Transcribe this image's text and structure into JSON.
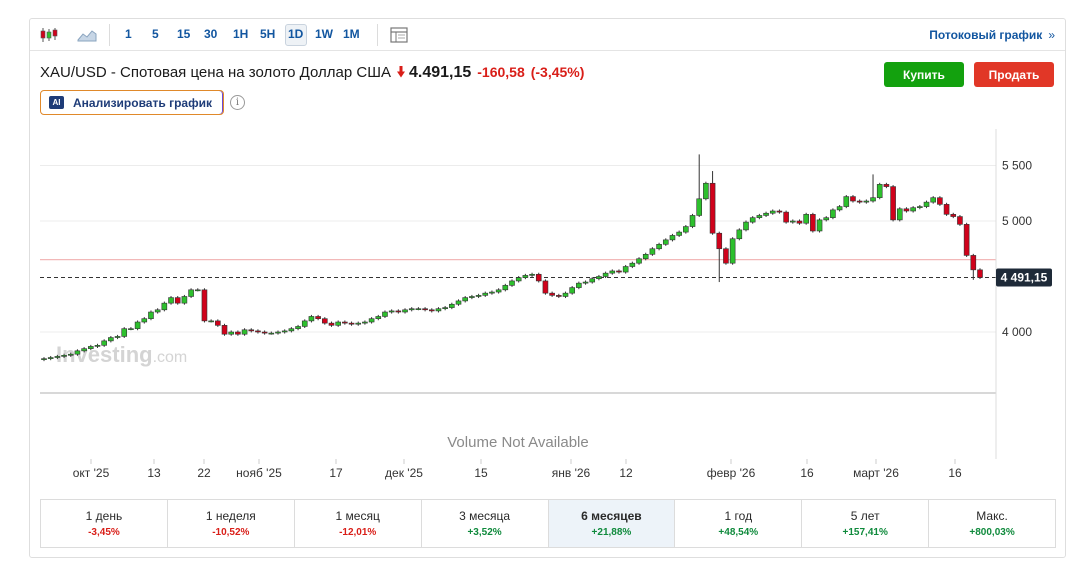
{
  "toolbar": {
    "intervals": [
      "1",
      "5",
      "15",
      "30",
      "1H",
      "5H",
      "1D",
      "1W",
      "1M"
    ],
    "active_interval": "1D",
    "stream_label": "Потоковый график",
    "stream_chevron": "»",
    "icons": [
      "candlestick-icon",
      "area-chart-icon",
      "layout-icon"
    ]
  },
  "header": {
    "title": "XAU/USD - Спотовая цена на золото Доллар США",
    "price": "4.491,15",
    "change": "-160,58",
    "change_pct": "(-3,45%)",
    "direction": "down"
  },
  "actions": {
    "buy": "Купить",
    "sell": "Продать"
  },
  "analyze": {
    "badge": "AI",
    "label": "Анализировать график",
    "info": "i"
  },
  "chart": {
    "price_label": "4 491,15",
    "volume_text": "Volume Not Available",
    "watermark": "Investing",
    "watermark_suffix": ".com",
    "colors": {
      "up": "#2dc02d",
      "down": "#d0021b",
      "grid": "#ececec",
      "ref_line": "#f2b8b8"
    }
  },
  "periods": [
    {
      "label": "1 день",
      "value": "-3,45%",
      "sign": "neg"
    },
    {
      "label": "1 неделя",
      "value": "-10,52%",
      "sign": "neg"
    },
    {
      "label": "1 месяц",
      "value": "-12,01%",
      "sign": "neg"
    },
    {
      "label": "3 месяца",
      "value": "+3,52%",
      "sign": "pos"
    },
    {
      "label": "6 месяцев",
      "value": "+21,88%",
      "sign": "pos",
      "active": true
    },
    {
      "label": "1 год",
      "value": "+48,54%",
      "sign": "pos"
    },
    {
      "label": "5 лет",
      "value": "+157,41%",
      "sign": "pos"
    },
    {
      "label": "Макс.",
      "value": "+800,03%",
      "sign": "pos"
    }
  ],
  "chart_data": {
    "type": "candlestick",
    "y_ticks": [
      5500,
      5000,
      4000
    ],
    "y_tick_labels": [
      "5 500",
      "5 000",
      "4 000"
    ],
    "ylim": [
      3550,
      5700
    ],
    "x_ticks": [
      "окт '25",
      "13",
      "22",
      "нояб '25",
      "17",
      "дек '25",
      "15",
      "янв '26",
      "12",
      "февр '26",
      "16",
      "март '26",
      "16"
    ],
    "last_price": 4491.15,
    "reference_price": 4651.73,
    "close": [
      3760,
      3770,
      3780,
      3790,
      3800,
      3830,
      3850,
      3870,
      3880,
      3920,
      3950,
      3960,
      4030,
      4030,
      4090,
      4120,
      4180,
      4200,
      4260,
      4310,
      4260,
      4320,
      4380,
      4380,
      4100,
      4100,
      4060,
      3980,
      4000,
      3980,
      4020,
      4010,
      4000,
      3990,
      3990,
      4000,
      4010,
      4030,
      4050,
      4100,
      4140,
      4120,
      4080,
      4060,
      4090,
      4080,
      4070,
      4080,
      4090,
      4120,
      4140,
      4180,
      4190,
      4180,
      4200,
      4210,
      4210,
      4200,
      4190,
      4210,
      4220,
      4250,
      4280,
      4310,
      4320,
      4330,
      4350,
      4360,
      4380,
      4420,
      4460,
      4490,
      4510,
      4520,
      4460,
      4350,
      4330,
      4320,
      4350,
      4400,
      4440,
      4450,
      4480,
      4500,
      4530,
      4550,
      4540,
      4590,
      4620,
      4660,
      4700,
      4750,
      4790,
      4830,
      4870,
      4900,
      4950,
      5050,
      5200,
      5340,
      4890,
      4750,
      4620,
      4840,
      4920,
      4990,
      5030,
      5050,
      5070,
      5090,
      5080,
      4990,
      5000,
      4980,
      5060,
      4910,
      5010,
      5030,
      5100,
      5130,
      5220,
      5180,
      5170,
      5180,
      5210,
      5330,
      5310,
      5010,
      5110,
      5090,
      5120,
      5130,
      5170,
      5210,
      5150,
      5060,
      5040,
      4970,
      4690,
      4560,
      4491
    ]
  }
}
